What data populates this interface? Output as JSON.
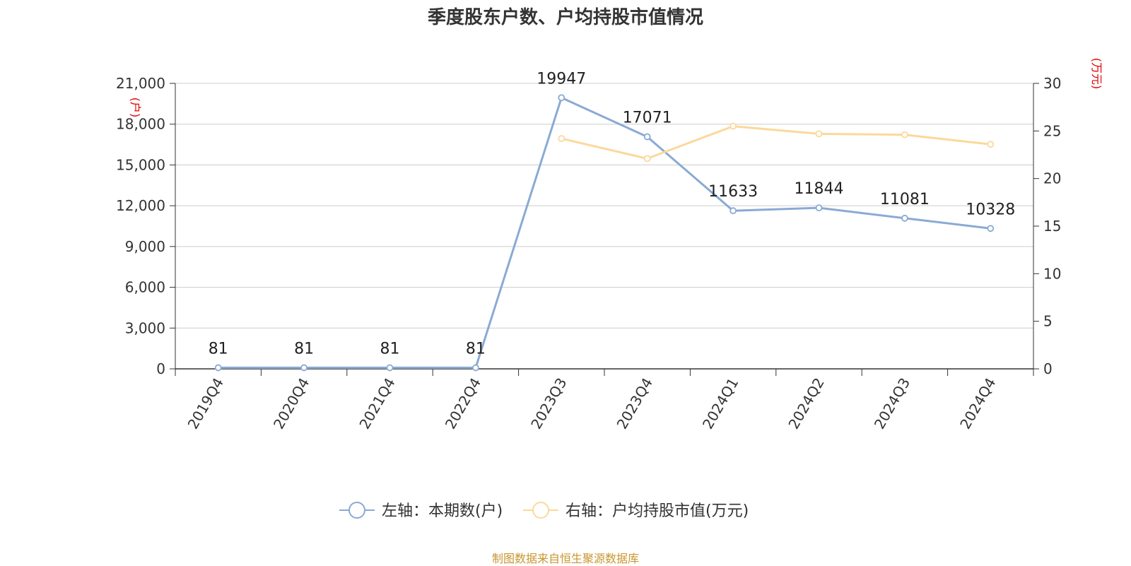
{
  "title": "季度股东户数、户均持股市值情况",
  "source": "制图数据来自恒生聚源数据库",
  "chart_data": {
    "type": "line",
    "categories": [
      "2019Q4",
      "2020Q4",
      "2021Q4",
      "2022Q4",
      "2023Q3",
      "2023Q4",
      "2024Q1",
      "2024Q2",
      "2024Q3",
      "2024Q4"
    ],
    "left_axis": {
      "unit": "(户)",
      "ylim": [
        0,
        21000
      ],
      "ticks": [
        0,
        3000,
        6000,
        9000,
        12000,
        15000,
        18000,
        21000
      ],
      "tick_labels": [
        "0",
        "3,000",
        "6,000",
        "9,000",
        "12,000",
        "15,000",
        "18,000",
        "21,000"
      ]
    },
    "right_axis": {
      "unit": "(万元)",
      "ylim": [
        0,
        30
      ],
      "ticks": [
        0,
        5,
        10,
        15,
        20,
        25,
        30
      ],
      "tick_labels": [
        "0",
        "5",
        "10",
        "15",
        "20",
        "25",
        "30"
      ]
    },
    "grid": true,
    "legend_position": "bottom",
    "series": [
      {
        "name": "左轴：本期数(户)",
        "axis": "left",
        "color": "#8aaad4",
        "values": [
          81,
          81,
          81,
          81,
          19947,
          17071,
          11633,
          11844,
          11081,
          10328
        ],
        "labels": [
          "81",
          "81",
          "81",
          "81",
          "19947",
          "17071",
          "11633",
          "11844",
          "11081",
          "10328"
        ]
      },
      {
        "name": "右轴：户均持股市值(万元)",
        "axis": "right",
        "color": "#fcd89a",
        "values": [
          null,
          null,
          null,
          null,
          24.2,
          22.1,
          25.5,
          24.7,
          24.6,
          23.6
        ]
      }
    ]
  }
}
